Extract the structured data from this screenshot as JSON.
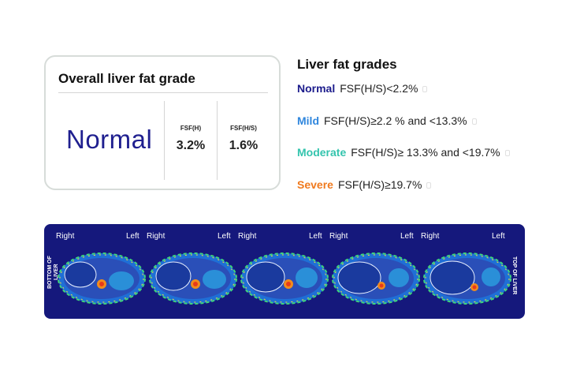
{
  "overall_card": {
    "title": "Overall liver fat grade",
    "grade": "Normal",
    "grade_color": "#1f1f8f",
    "metrics": [
      {
        "label": "FSF(H)",
        "value": "3.2%"
      },
      {
        "label": "FSF(H/S)",
        "value": "1.6%"
      }
    ]
  },
  "grades_legend": {
    "title": "Liver fat grades",
    "items": [
      {
        "name": "Normal",
        "color": "#1c1c8c",
        "criterion": "FSF(H/S)<2.2%"
      },
      {
        "name": "Mild",
        "color": "#2f86dd",
        "criterion": "FSF(H/S)≥2.2 % and <13.3%"
      },
      {
        "name": "Moderate",
        "color": "#33c4ad",
        "criterion": "FSF(H/S)≥ 13.3% and <19.7%"
      },
      {
        "name": "Severe",
        "color": "#f07a1e",
        "criterion": "FSF(H/S)≥19.7%"
      }
    ]
  },
  "scan_panel": {
    "background": "#15187c",
    "bottom_label": "BOTTOM OF LIVER",
    "top_label": "TOP OF LIVER",
    "slices": [
      {
        "right_label": "Right",
        "left_label": "Left"
      },
      {
        "right_label": "Right",
        "left_label": "Left"
      },
      {
        "right_label": "Right",
        "left_label": "Left"
      },
      {
        "right_label": "Right",
        "left_label": "Left"
      },
      {
        "right_label": "Right",
        "left_label": "Left"
      }
    ]
  }
}
